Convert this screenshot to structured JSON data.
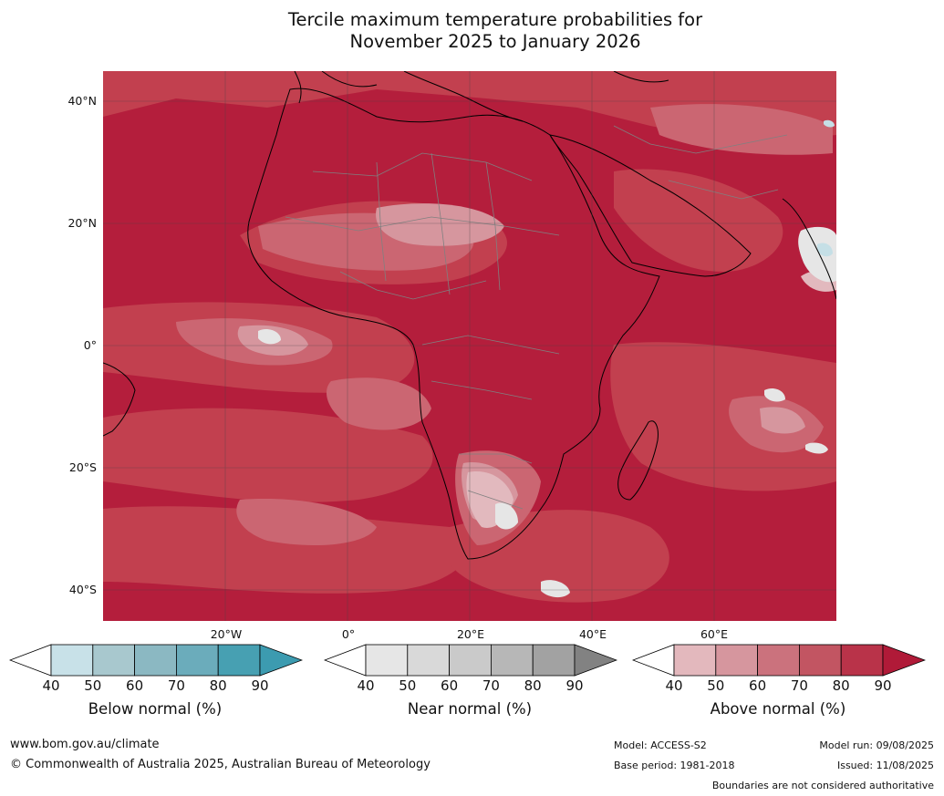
{
  "title_line1": "Tercile maximum temperature probabilities for",
  "title_line2": "November 2025 to January 2026",
  "map": {
    "lat_labels": [
      "40°N",
      "20°N",
      "0°",
      "20°S",
      "40°S"
    ],
    "lon_labels": [
      "20°W",
      "0°",
      "20°E",
      "40°E",
      "60°E"
    ],
    "colors": {
      "above_90": "#b41e3c",
      "above_80": "#c2404f",
      "above_70": "#cb6672",
      "above_60": "#d6969e",
      "above_50": "#e2b9be",
      "near_50": "#e6e6e6",
      "below_50": "#c5dfe6",
      "borders": "#808080",
      "coast": "#000000",
      "grid": "#444444"
    }
  },
  "colorbars": [
    {
      "label": "Below normal (%)",
      "ticks": [
        "40",
        "50",
        "60",
        "70",
        "80",
        "90"
      ],
      "colors": [
        "#ffffff",
        "#c8e1e8",
        "#a8c8ce",
        "#8bb8c2",
        "#6bacbb",
        "#47a0b2",
        "#3c9bb0"
      ]
    },
    {
      "label": "Near normal (%)",
      "ticks": [
        "40",
        "50",
        "60",
        "70",
        "80",
        "90"
      ],
      "colors": [
        "#ffffff",
        "#e6e6e6",
        "#d9d9d9",
        "#cacaca",
        "#b7b7b7",
        "#a2a2a2",
        "#828282"
      ]
    },
    {
      "label": "Above normal (%)",
      "ticks": [
        "40",
        "50",
        "60",
        "70",
        "80",
        "90"
      ],
      "colors": [
        "#ffffff",
        "#e3b8bd",
        "#d6969e",
        "#cb727d",
        "#c25562",
        "#b93349",
        "#b01a38"
      ]
    }
  ],
  "footer": {
    "url": "www.bom.gov.au/climate",
    "copyright": "© Commonwealth of Australia 2025, Australian Bureau of Meteorology",
    "model": "Model: ACCESS-S2",
    "base_period": "Base period: 1981-2018",
    "model_run": "Model run: 09/08/2025",
    "issued": "Issued: 11/08/2025",
    "disclaimer": "Boundaries are not considered authoritative"
  }
}
